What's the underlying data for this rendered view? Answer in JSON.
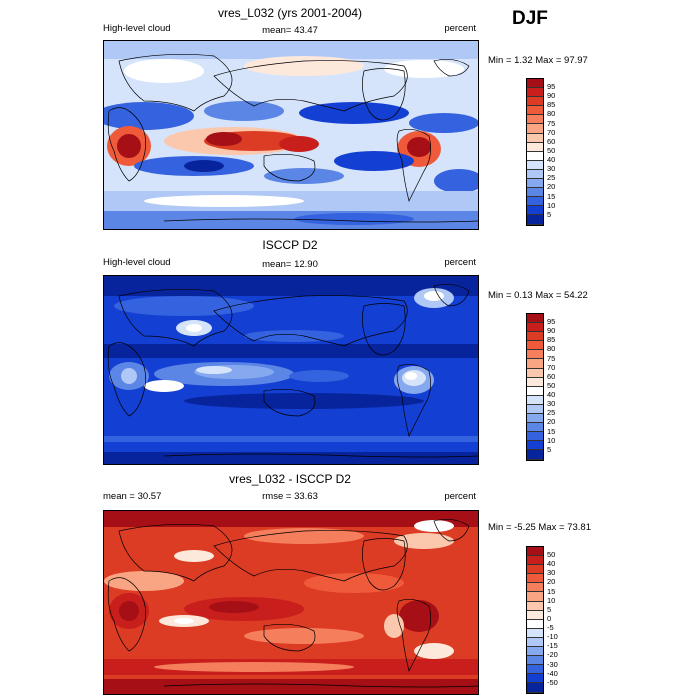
{
  "season": "DJF",
  "panels": [
    {
      "title": "vres_L032 (yrs 2001-2004)",
      "left_label": "High-level cloud",
      "center_label": "mean=  43.47",
      "right_label": "percent",
      "minmax": "Min =   1.32 Max =  97.97",
      "colorbar_labels": [
        "95",
        "90",
        "85",
        "80",
        "75",
        "70",
        "60",
        "50",
        "40",
        "30",
        "25",
        "20",
        "15",
        "10",
        "5"
      ],
      "colorbar_colors": [
        "#a50f15",
        "#c81f1c",
        "#dc3b24",
        "#ef5a3a",
        "#f57e5c",
        "#f9a583",
        "#fbc8ad",
        "#fde8dc",
        "#ffffff",
        "#d6e4fb",
        "#b0c8f5",
        "#86a8ee",
        "#5c86e5",
        "#3562de",
        "#143fd3",
        "#08249c"
      ]
    },
    {
      "title": "ISCCP D2",
      "left_label": "High-level cloud",
      "center_label": "mean=  12.90",
      "right_label": "percent",
      "minmax": "Min =   0.13 Max =  54.22",
      "colorbar_labels": [
        "95",
        "90",
        "85",
        "80",
        "75",
        "70",
        "60",
        "50",
        "40",
        "30",
        "25",
        "20",
        "15",
        "10",
        "5"
      ],
      "colorbar_colors": [
        "#a50f15",
        "#c81f1c",
        "#dc3b24",
        "#ef5a3a",
        "#f57e5c",
        "#f9a583",
        "#fbc8ad",
        "#fde8dc",
        "#ffffff",
        "#d6e4fb",
        "#b0c8f5",
        "#86a8ee",
        "#5c86e5",
        "#3562de",
        "#143fd3",
        "#08249c"
      ]
    },
    {
      "title": "vres_L032 - ISCCP D2",
      "left_label": "mean =  30.57",
      "center_label": "rmse =  33.63",
      "right_label": "percent",
      "minmax": "Min =  -5.25 Max =  73.81",
      "colorbar_labels": [
        "50",
        "40",
        "30",
        "20",
        "15",
        "10",
        "5",
        "0",
        "-5",
        "-10",
        "-15",
        "-20",
        "-30",
        "-40",
        "-50"
      ],
      "colorbar_colors": [
        "#a50f15",
        "#c81f1c",
        "#dc3b24",
        "#ef5a3a",
        "#f57e5c",
        "#f9a583",
        "#fbc8ad",
        "#fde8dc",
        "#ffffff",
        "#d6e4fb",
        "#b0c8f5",
        "#86a8ee",
        "#5c86e5",
        "#3562de",
        "#143fd3",
        "#08249c"
      ]
    }
  ]
}
